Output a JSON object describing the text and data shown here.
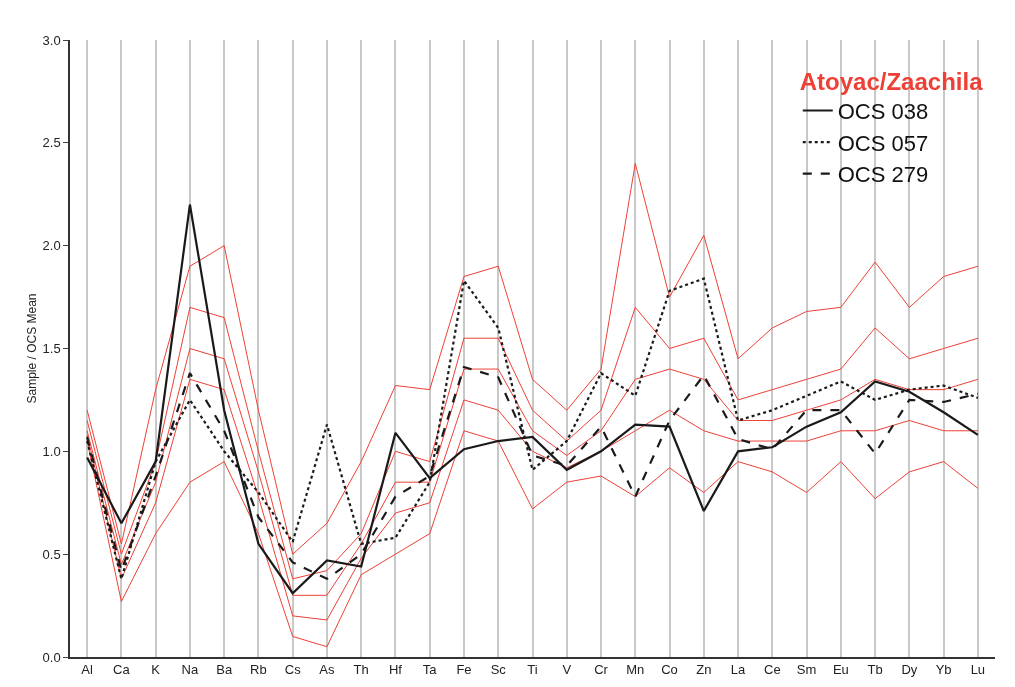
{
  "chart_data": {
    "type": "line",
    "ylabel": "Sample / OCS Mean",
    "legend_title": "Atoyac/Zaachila",
    "categories": [
      "Al",
      "Ca",
      "K",
      "Na",
      "Ba",
      "Rb",
      "Cs",
      "As",
      "Th",
      "Hf",
      "Ta",
      "Fe",
      "Sc",
      "Ti",
      "V",
      "Cr",
      "Mn",
      "Co",
      "Zn",
      "La",
      "Ce",
      "Sm",
      "Eu",
      "Tb",
      "Dy",
      "Yb",
      "Lu"
    ],
    "series": [
      {
        "color": "#ee4035",
        "line_style": "solid",
        "values": [
          1.2,
          0.55,
          1.3,
          1.9,
          2.0,
          1.2,
          0.5,
          0.65,
          0.95,
          1.32,
          1.3,
          1.85,
          1.9,
          1.35,
          1.2,
          1.4,
          2.4,
          1.75,
          2.05,
          1.45,
          1.6,
          1.68,
          1.7,
          1.92,
          1.7,
          1.85,
          1.9
        ]
      },
      {
        "color": "#ee4035",
        "line_style": "solid",
        "values": [
          1.15,
          0.5,
          0.95,
          1.7,
          1.65,
          1.0,
          0.38,
          0.42,
          0.6,
          1.0,
          0.95,
          1.55,
          1.55,
          1.2,
          1.05,
          1.2,
          1.7,
          1.5,
          1.55,
          1.25,
          1.3,
          1.35,
          1.4,
          1.6,
          1.45,
          1.5,
          1.55
        ]
      },
      {
        "color": "#ee4035",
        "line_style": "solid",
        "values": [
          1.1,
          0.45,
          0.85,
          1.5,
          1.45,
          0.9,
          0.3,
          0.3,
          0.55,
          0.85,
          0.85,
          1.4,
          1.4,
          1.1,
          0.98,
          1.1,
          1.35,
          1.4,
          1.35,
          1.15,
          1.15,
          1.2,
          1.25,
          1.35,
          1.3,
          1.3,
          1.35
        ]
      },
      {
        "color": "#ee4035",
        "line_style": "solid",
        "values": [
          1.08,
          0.38,
          0.75,
          1.35,
          1.3,
          0.78,
          0.2,
          0.18,
          0.48,
          0.7,
          0.75,
          1.25,
          1.2,
          1.0,
          0.92,
          1.0,
          1.1,
          1.2,
          1.1,
          1.05,
          1.05,
          1.05,
          1.1,
          1.1,
          1.15,
          1.1,
          1.1
        ]
      },
      {
        "color": "#ee4035",
        "line_style": "solid",
        "values": [
          1.05,
          0.27,
          0.6,
          0.85,
          0.95,
          0.6,
          0.1,
          0.05,
          0.4,
          0.5,
          0.6,
          1.1,
          1.05,
          0.72,
          0.85,
          0.88,
          0.78,
          0.92,
          0.8,
          0.95,
          0.9,
          0.8,
          0.95,
          0.77,
          0.9,
          0.95,
          0.82
        ]
      },
      {
        "name": "OCS 038",
        "color": "#1a1a1a",
        "line_style": "solid",
        "values": [
          0.97,
          0.65,
          0.95,
          2.2,
          1.2,
          0.55,
          0.31,
          0.47,
          0.44,
          1.09,
          0.87,
          1.01,
          1.05,
          1.07,
          0.91,
          1.0,
          1.13,
          1.12,
          0.71,
          1.0,
          1.02,
          1.12,
          1.19,
          1.34,
          1.29,
          1.19,
          1.08
        ]
      },
      {
        "name": "OCS 057",
        "color": "#1a1a1a",
        "line_style": "dotted",
        "values": [
          1.05,
          0.38,
          0.95,
          1.25,
          1.0,
          0.8,
          0.56,
          1.13,
          0.55,
          0.58,
          0.85,
          1.83,
          1.6,
          0.91,
          1.05,
          1.38,
          1.27,
          1.78,
          1.84,
          1.15,
          1.2,
          1.27,
          1.34,
          1.25,
          1.3,
          1.32,
          1.26
        ]
      },
      {
        "name": "OCS 279",
        "color": "#1a1a1a",
        "line_style": "dashed",
        "values": [
          1.07,
          0.42,
          0.88,
          1.38,
          1.1,
          0.68,
          0.46,
          0.38,
          0.5,
          0.78,
          0.88,
          1.41,
          1.36,
          0.98,
          0.93,
          1.12,
          0.78,
          1.15,
          1.37,
          1.06,
          1.01,
          1.2,
          1.2,
          0.99,
          1.25,
          1.24,
          1.28
        ]
      }
    ],
    "ylim": [
      0,
      3
    ],
    "yticks": [
      {
        "value": 0,
        "label": "0.0"
      },
      {
        "value": 0.5,
        "label": "0.5"
      },
      {
        "value": 1,
        "label": "1.0"
      },
      {
        "value": 1.5,
        "label": "1.5"
      },
      {
        "value": 2,
        "label": "2.0"
      },
      {
        "value": 2.5,
        "label": "2.5"
      },
      {
        "value": 3,
        "label": "3.0"
      }
    ],
    "grid": "x",
    "legend": "top right",
    "marker": "none"
  }
}
